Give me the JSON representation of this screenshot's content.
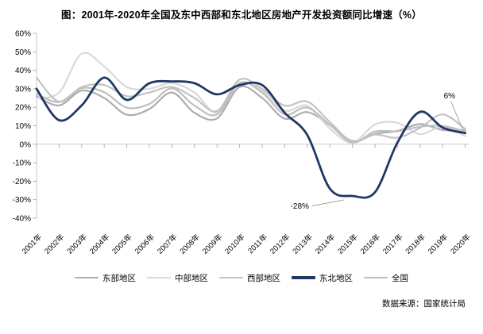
{
  "title": "图：2001年-2020年全国及东中西部和东北地区房地产开发投资额同比增速（%）",
  "footer": {
    "source": "数据来源：国家统计局"
  },
  "colors": {
    "east": "#adadad",
    "central": "#d9d9d9",
    "west": "#c3c3c3",
    "northeast": "#1f3864",
    "national": "#bfbfbf",
    "axis": "#c9c9c9",
    "tick": "#b0b0b0",
    "annotation_leader": "#9a9a9a",
    "text": "#000000"
  },
  "chart_data": {
    "type": "line",
    "smooth": true,
    "title": "图：2001年-2020年全国及东中西部和东北地区房地产开发投资额同比增速（%）",
    "x": [
      "2001年",
      "2002年",
      "2003年",
      "2004年",
      "2005年",
      "2006年",
      "2007年",
      "2008年",
      "2009年",
      "2010年",
      "2011年",
      "2012年",
      "2013年",
      "2014年",
      "2015年",
      "2016年",
      "2017年",
      "2018年",
      "2019年",
      "2020年"
    ],
    "ylim": [
      -40,
      60
    ],
    "ytick_step": 10,
    "yticks": [
      "60%",
      "50%",
      "40%",
      "30%",
      "20%",
      "10%",
      "0%",
      "-10%",
      "-20%",
      "-30%",
      "-40%"
    ],
    "grid": false,
    "zero_axis_line": true,
    "legend_position": "bottom",
    "series": [
      {
        "name": "东部地区",
        "color": "#adadad",
        "emphasis": false,
        "values": [
          26,
          21,
          29,
          25,
          16,
          19,
          28,
          17,
          14,
          31,
          25,
          13.8,
          17.4,
          10.4,
          1.8,
          5.6,
          7.2,
          10.9,
          7.7,
          7.6
        ]
      },
      {
        "name": "中部地区",
        "color": "#d9d9d9",
        "emphasis": false,
        "values": [
          25,
          28,
          49,
          42,
          31,
          30,
          33,
          28,
          17,
          33,
          29,
          18.2,
          20.8,
          8.5,
          0.8,
          10.7,
          11.6,
          5.4,
          9.6,
          4.4
        ]
      },
      {
        "name": "西部地区",
        "color": "#c3c3c3",
        "emphasis": false,
        "values": [
          36,
          23,
          31,
          32,
          26,
          28,
          31,
          25,
          18,
          35,
          30,
          20.9,
          23.1,
          12,
          1.5,
          5.2,
          3.5,
          8.9,
          16.1,
          8.2
        ]
      },
      {
        "name": "东北地区",
        "color": "#1f3864",
        "emphasis": true,
        "values": [
          30,
          13,
          21,
          36,
          24,
          33,
          34,
          33,
          27,
          32,
          32,
          17,
          5,
          -24,
          -28,
          -26,
          1,
          17.5,
          9,
          6
        ]
      },
      {
        "name": "全国",
        "color": "#bfbfbf",
        "emphasis": false,
        "values": [
          27.3,
          22.8,
          30.3,
          28.1,
          19.8,
          21.8,
          30.2,
          20.9,
          16.1,
          33.2,
          27.9,
          16.2,
          19.8,
          10.5,
          1,
          6.9,
          7,
          9.5,
          9.9,
          7
        ]
      }
    ],
    "annotations": [
      {
        "text": "-28%",
        "series": "东北地区",
        "x": "2015年"
      },
      {
        "text": "6%",
        "series": "东北地区",
        "x": "2020年"
      }
    ]
  }
}
